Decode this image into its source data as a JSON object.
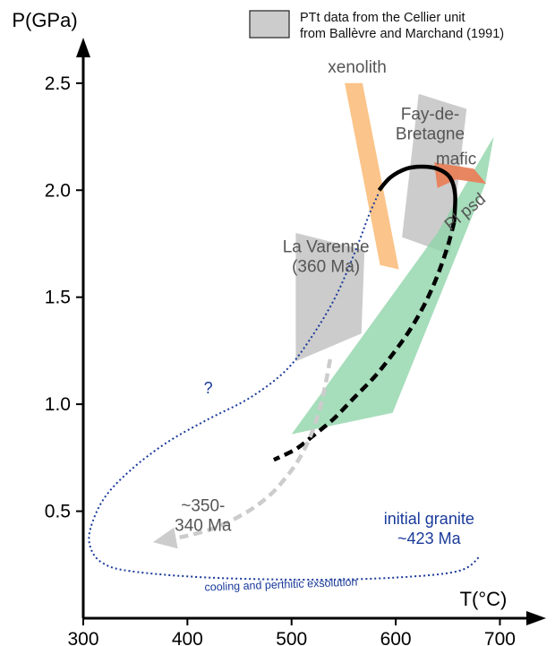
{
  "chart_data": {
    "type": "line",
    "title": "",
    "xlabel": "T(°C)",
    "ylabel": "P(GPa)",
    "xlim": [
      300,
      740
    ],
    "ylim": [
      0,
      2.65
    ],
    "x_ticks": [
      "300",
      "400",
      "500",
      "600",
      "700"
    ],
    "y_ticks": [
      "0.5",
      "1.0",
      "1.5",
      "2.0",
      "2.5"
    ],
    "legend": {
      "position": "top-right",
      "lines": [
        "PTt data from the Cellier unit",
        "from Ballèvre and Marchand (1991)"
      ],
      "swatch_color": "#cccccc"
    },
    "colors": {
      "gray_field": "#cccccc",
      "xenolith": "#fbbf80",
      "xenolith_label": "#f07c3a",
      "pl_psd": "#8dd4a8",
      "pl_psd_label": "#3aa560",
      "mafic_field": "#e8805a",
      "mafic_label": "#b22222",
      "path_main": "#000000",
      "path_retro": "#cccccc",
      "path_cooling": "#1a3a9a",
      "annotation_gray": "#555555"
    },
    "fields": [
      {
        "name": "La Varenne",
        "color": "#cccccc",
        "points": [
          [
            504,
            1.8
          ],
          [
            570,
            1.72
          ],
          [
            567,
            1.33
          ],
          [
            504,
            1.2
          ]
        ]
      },
      {
        "name": "Fay-de-Bretagne",
        "color": "#cccccc",
        "points": [
          [
            622,
            2.45
          ],
          [
            668,
            2.38
          ],
          [
            652,
            1.7
          ],
          [
            606,
            1.78
          ]
        ]
      },
      {
        "name": "xenolith",
        "color": "#fbbf80",
        "points": [
          [
            551,
            2.5
          ],
          [
            568,
            2.5
          ],
          [
            603,
            1.63
          ],
          [
            585,
            1.65
          ]
        ]
      },
      {
        "name": "Pl psd",
        "color": "#8dd4a8",
        "points": [
          [
            694,
            2.25
          ],
          [
            686,
            2.03
          ],
          [
            597,
            0.96
          ],
          [
            500,
            0.86
          ],
          [
            640,
            1.8
          ]
        ]
      },
      {
        "name": "mafic",
        "color": "#e8805a",
        "points": [
          [
            637,
            2.13
          ],
          [
            675,
            2.1
          ],
          [
            687,
            2.03
          ],
          [
            658,
            2.05
          ],
          [
            640,
            2.01
          ]
        ]
      }
    ],
    "series": [
      {
        "style": "solid-black",
        "x": [
          584,
          595,
          610,
          625,
          640,
          652,
          657,
          656
        ],
        "y": [
          2.0,
          2.06,
          2.1,
          2.11,
          2.1,
          2.06,
          1.98,
          1.85
        ]
      },
      {
        "style": "dashed-black",
        "x": [
          656,
          650,
          640,
          628,
          614,
          598,
          580,
          560,
          540,
          520,
          504,
          483
        ],
        "y": [
          1.85,
          1.74,
          1.6,
          1.47,
          1.35,
          1.24,
          1.13,
          1.03,
          0.93,
          0.85,
          0.79,
          0.74
        ]
      },
      {
        "style": "dashed-gray",
        "x": [
          537,
          532,
          526,
          518,
          508,
          495,
          478,
          455,
          425,
          395,
          372
        ],
        "y": [
          1.21,
          1.08,
          0.96,
          0.85,
          0.75,
          0.66,
          0.57,
          0.49,
          0.42,
          0.38,
          0.36
        ]
      },
      {
        "style": "dotted-blue",
        "x": [
          583,
          574,
          560,
          542,
          520,
          495,
          460,
          420,
          380,
          345,
          320,
          307,
          307,
          318,
          345,
          420,
          520,
          600,
          660,
          681
        ],
        "y": [
          1.98,
          1.88,
          1.7,
          1.5,
          1.32,
          1.16,
          1.03,
          0.93,
          0.82,
          0.69,
          0.56,
          0.42,
          0.33,
          0.26,
          0.22,
          0.19,
          0.18,
          0.19,
          0.22,
          0.29
        ]
      }
    ],
    "labels": [
      {
        "text": "xenolith",
        "x": 563,
        "y": 2.55,
        "color": "xenolith_label"
      },
      {
        "lines": [
          "Fay-de-",
          "Bretagne"
        ],
        "x": 633,
        "y": 2.33,
        "color": "annotation_gray"
      },
      {
        "text": "mafic",
        "x": 658,
        "y": 2.12,
        "color": "mafic_label"
      },
      {
        "text": "Pl psd",
        "x": 670,
        "y": 1.88,
        "color": "pl_psd_label"
      },
      {
        "lines": [
          "La Varenne",
          "(360 Ma)"
        ],
        "x": 533,
        "y": 1.71,
        "color": "annotation_gray"
      },
      {
        "text": "?",
        "x": 420,
        "y": 1.05,
        "color": "path_cooling"
      },
      {
        "lines": [
          "~350-",
          "340 Ma"
        ],
        "x": 415,
        "y": 0.5,
        "color": "annotation_gray"
      },
      {
        "lines": [
          "initial granite",
          "~423 Ma"
        ],
        "x": 632,
        "y": 0.44,
        "color": "path_cooling"
      },
      {
        "text": "cooling and perthitic exsolution",
        "x": 490,
        "y": 0.14,
        "color": "path_cooling"
      }
    ]
  }
}
